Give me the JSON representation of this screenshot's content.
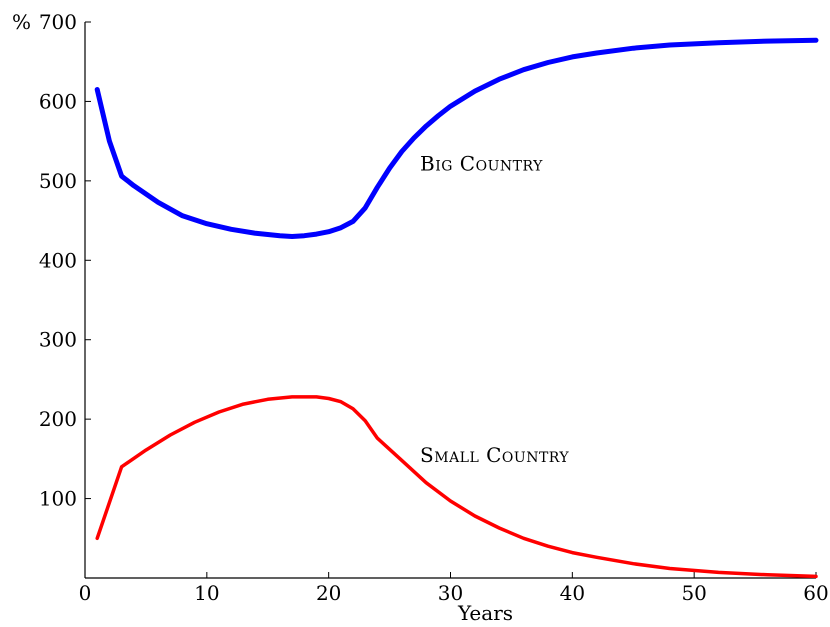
{
  "chart_data": {
    "type": "line",
    "title": "",
    "xlabel": "Years",
    "ylabel": "",
    "y_unit": "%",
    "xlim": [
      0,
      60
    ],
    "ylim": [
      0,
      700
    ],
    "xticks": [
      0,
      10,
      20,
      30,
      40,
      50,
      60
    ],
    "yticks": [
      100,
      200,
      300,
      400,
      500,
      600,
      700
    ],
    "grid": false,
    "legend": "inline",
    "series": [
      {
        "name": "Big Country",
        "color": "#0000ff",
        "label_at": [
          27.5,
          522
        ],
        "points": [
          [
            1,
            615
          ],
          [
            2,
            550
          ],
          [
            3,
            506
          ],
          [
            4,
            494
          ],
          [
            6,
            473
          ],
          [
            8,
            456
          ],
          [
            10,
            446
          ],
          [
            12,
            439
          ],
          [
            14,
            434
          ],
          [
            16,
            431
          ],
          [
            17,
            430
          ],
          [
            18,
            431
          ],
          [
            19,
            433
          ],
          [
            20,
            436
          ],
          [
            21,
            441
          ],
          [
            22,
            449
          ],
          [
            23,
            466
          ],
          [
            24,
            492
          ],
          [
            25,
            516
          ],
          [
            26,
            537
          ],
          [
            27,
            554
          ],
          [
            28,
            569
          ],
          [
            29,
            582
          ],
          [
            30,
            594
          ],
          [
            32,
            613
          ],
          [
            34,
            628
          ],
          [
            36,
            640
          ],
          [
            38,
            649
          ],
          [
            40,
            656
          ],
          [
            42,
            661
          ],
          [
            45,
            667
          ],
          [
            48,
            671
          ],
          [
            52,
            674
          ],
          [
            56,
            676
          ],
          [
            60,
            677
          ]
        ]
      },
      {
        "name": "Small Country",
        "color": "#ff0000",
        "label_at": [
          27.5,
          155
        ],
        "points": [
          [
            1,
            50
          ],
          [
            3,
            140
          ],
          [
            5,
            161
          ],
          [
            7,
            180
          ],
          [
            9,
            196
          ],
          [
            11,
            209
          ],
          [
            13,
            219
          ],
          [
            15,
            225
          ],
          [
            17,
            228
          ],
          [
            18,
            228
          ],
          [
            19,
            228
          ],
          [
            20,
            226
          ],
          [
            21,
            222
          ],
          [
            22,
            213
          ],
          [
            23,
            198
          ],
          [
            24,
            176
          ],
          [
            26,
            148
          ],
          [
            28,
            120
          ],
          [
            30,
            97
          ],
          [
            32,
            78
          ],
          [
            34,
            63
          ],
          [
            36,
            50
          ],
          [
            38,
            40
          ],
          [
            40,
            32
          ],
          [
            42,
            26
          ],
          [
            45,
            18
          ],
          [
            48,
            12
          ],
          [
            52,
            7
          ],
          [
            56,
            4
          ],
          [
            60,
            2
          ]
        ]
      }
    ]
  }
}
